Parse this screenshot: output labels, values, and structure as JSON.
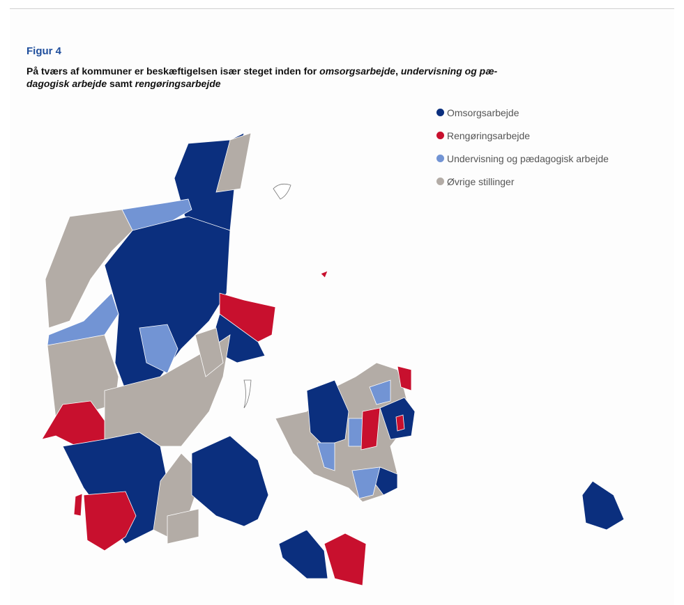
{
  "figure_label": "Figur 4",
  "title": [
    {
      "text": "På tværs af kommuner er beskæftigelsen især steget inden for ",
      "italic": false
    },
    {
      "text": "omsorgsarbejde",
      "italic": true
    },
    {
      "text": ", ",
      "italic": false
    },
    {
      "text": "undervisning og pæ­dagogisk arbejde",
      "italic": true
    },
    {
      "text": " samt ",
      "italic": false
    },
    {
      "text": "rengøringsarbejde",
      "italic": true
    }
  ],
  "legend": [
    {
      "name": "Omsorgsarbejde",
      "color": "#0b2f7e"
    },
    {
      "name": "Rengøringsarbejde",
      "color": "#c8102e"
    },
    {
      "name": "Undervisning og pædagogisk arbejde",
      "color": "#7294d4"
    },
    {
      "name": "Øvrige stillinger",
      "color": "#b3aca6"
    }
  ]
}
